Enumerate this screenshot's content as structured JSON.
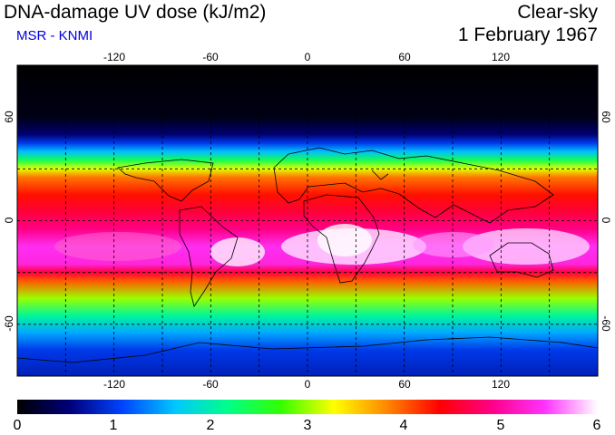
{
  "header": {
    "title": "DNA-damage UV dose (kJ/m2)",
    "subtitle": "MSR - KNMI",
    "condition": "Clear-sky",
    "date": "1 February 1967"
  },
  "map": {
    "projection": "plate-carree",
    "lon_range": [
      -180,
      180
    ],
    "lat_range": [
      -90,
      90
    ],
    "lon_ticks": [
      "-120",
      "-60",
      "0",
      "60",
      "120"
    ],
    "lat_ticks": [
      "60",
      "0",
      "-60"
    ],
    "grid": "dashed 30 degree",
    "field": "Erythemal DNA-damage UV dose, peak near 15-30 S (southern summer), near zero north of 60 N"
  },
  "colorbar": {
    "min": 0,
    "max": 6,
    "labels": [
      "0",
      "1",
      "2",
      "3",
      "4",
      "5",
      "6"
    ],
    "colors": [
      "#000000",
      "#00007a",
      "#0044ff",
      "#00c8ff",
      "#00ff88",
      "#33ff00",
      "#ffff00",
      "#ff8800",
      "#ff0000",
      "#ff0088",
      "#ff33ff",
      "#ffffff"
    ]
  }
}
